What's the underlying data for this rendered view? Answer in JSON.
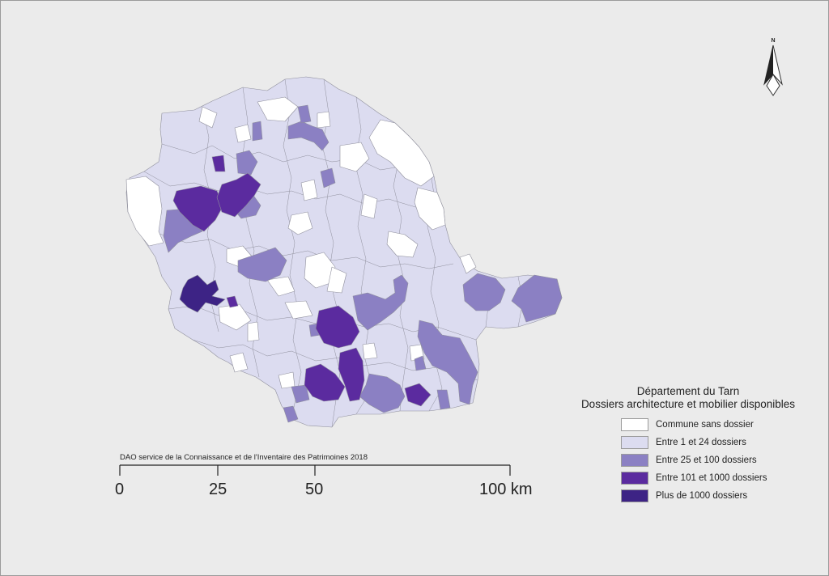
{
  "legend": {
    "title_line1": "Département du Tarn",
    "title_line2": "Dossiers architecture et mobilier disponibles",
    "classes": [
      {
        "key": "none",
        "label": "Commune sans dossier",
        "color": "#ffffff"
      },
      {
        "key": "low",
        "label": "Entre 1 et 24 dossiers",
        "color": "#dcdcf0"
      },
      {
        "key": "mid",
        "label": "Entre 25 et 100 dossiers",
        "color": "#8b80c3"
      },
      {
        "key": "high",
        "label": "Entre 101 et 1000 dossiers",
        "color": "#5b2b9f"
      },
      {
        "key": "top",
        "label": "Plus de 1000 dossiers",
        "color": "#3d2385"
      }
    ]
  },
  "north_arrow": {
    "label": "N",
    "icon": "north-arrow-icon"
  },
  "credit": "DAO service de la Connaissance et de l'Inventaire des Patrimoines 2018",
  "scale_bar": {
    "ticks": [
      "0",
      "25",
      "50",
      "100 km"
    ]
  }
}
